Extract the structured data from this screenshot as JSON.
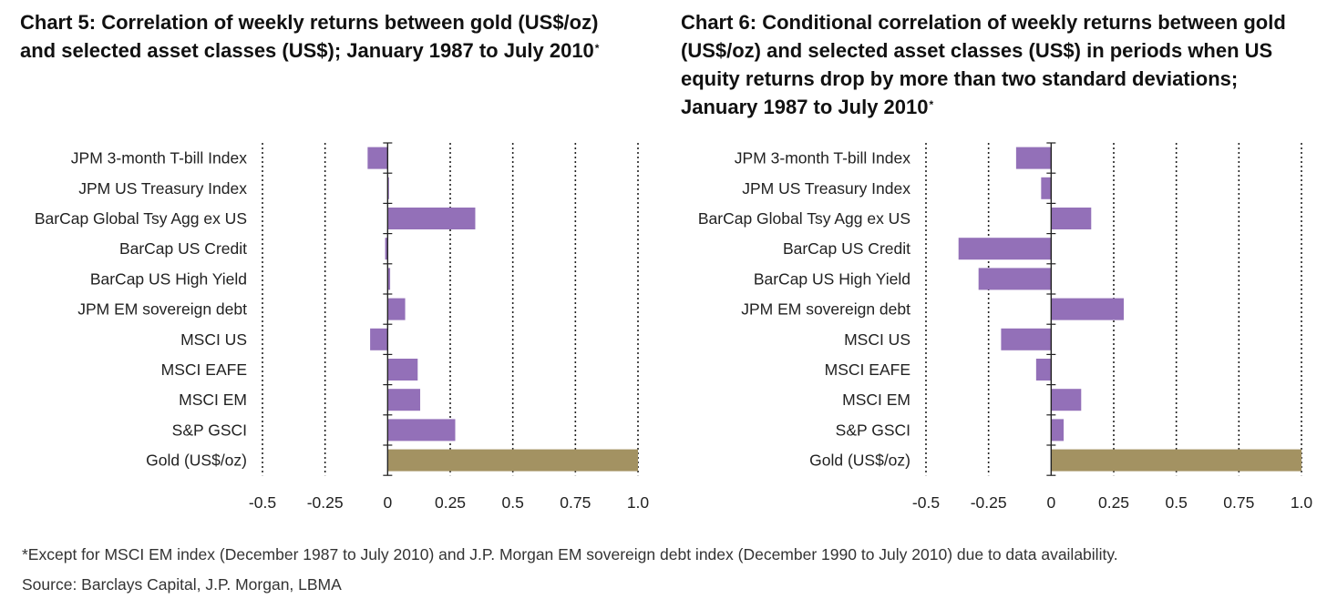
{
  "chart5": {
    "title_main": "Chart 5: Correlation of weekly returns between gold (US$/oz) and selected asset classes (US$); January 1987 to July 2010",
    "title_mark": "*"
  },
  "chart6": {
    "title_main": "Chart 6: Conditional correlation of weekly returns between gold (US$/oz) and selected asset classes (US$) in periods when US equity returns drop by more than two standard deviations; January 1987 to July 2010",
    "title_mark": "*"
  },
  "footnote": "*Except for MSCI EM index (December 1987 to July 2010) and J.P. Morgan EM sovereign debt index (December 1990 to July 2010) due to data availability.",
  "source": "Source: Barclays Capital, J.P. Morgan, LBMA",
  "colors": {
    "bar": "#9370b8",
    "gold_bar": "#a39262",
    "axis": "#222222"
  },
  "chart_data": [
    {
      "type": "bar",
      "orientation": "horizontal",
      "title": "Chart 5: Correlation of weekly returns between gold (US$/oz) and selected asset classes (US$); January 1987 to July 2010*",
      "categories": [
        "JPM 3-month T-bill Index",
        "JPM US Treasury Index",
        "BarCap Global Tsy Agg ex US",
        "BarCap US Credit",
        "BarCap US High Yield",
        "JPM EM sovereign debt",
        "MSCI US",
        "MSCI EAFE",
        "MSCI EM",
        "S&P GSCI",
        "Gold (US$/oz)"
      ],
      "values": [
        -0.08,
        0.005,
        0.35,
        -0.01,
        0.01,
        0.07,
        -0.07,
        0.12,
        0.13,
        0.27,
        1.0
      ],
      "xlim": [
        -0.5,
        1.0
      ],
      "xticks": [
        -0.5,
        -0.25,
        0,
        0.25,
        0.5,
        0.75,
        1.0
      ],
      "xtick_labels": [
        "-0.5",
        "-0.25",
        "0",
        "0.25",
        "0.5",
        "0.75",
        "1.0"
      ],
      "grid": "dotted vertical"
    },
    {
      "type": "bar",
      "orientation": "horizontal",
      "title": "Chart 6: Conditional correlation of weekly returns between gold (US$/oz) and selected asset classes (US$) in periods when US equity returns drop by more than two standard deviations; January 1987 to July 2010*",
      "categories": [
        "JPM 3-month T-bill Index",
        "JPM US Treasury Index",
        "BarCap Global Tsy Agg ex US",
        "BarCap US Credit",
        "BarCap US High Yield",
        "JPM EM sovereign debt",
        "MSCI US",
        "MSCI EAFE",
        "MSCI EM",
        "S&P GSCI",
        "Gold (US$/oz)"
      ],
      "values": [
        -0.14,
        -0.04,
        0.16,
        -0.37,
        -0.29,
        0.29,
        -0.2,
        -0.06,
        0.12,
        0.05,
        1.0
      ],
      "xlim": [
        -0.5,
        1.0
      ],
      "xticks": [
        -0.5,
        -0.25,
        0,
        0.25,
        0.5,
        0.75,
        1.0
      ],
      "xtick_labels": [
        "-0.5",
        "-0.25",
        "0",
        "0.25",
        "0.5",
        "0.75",
        "1.0"
      ],
      "grid": "dotted vertical"
    }
  ]
}
